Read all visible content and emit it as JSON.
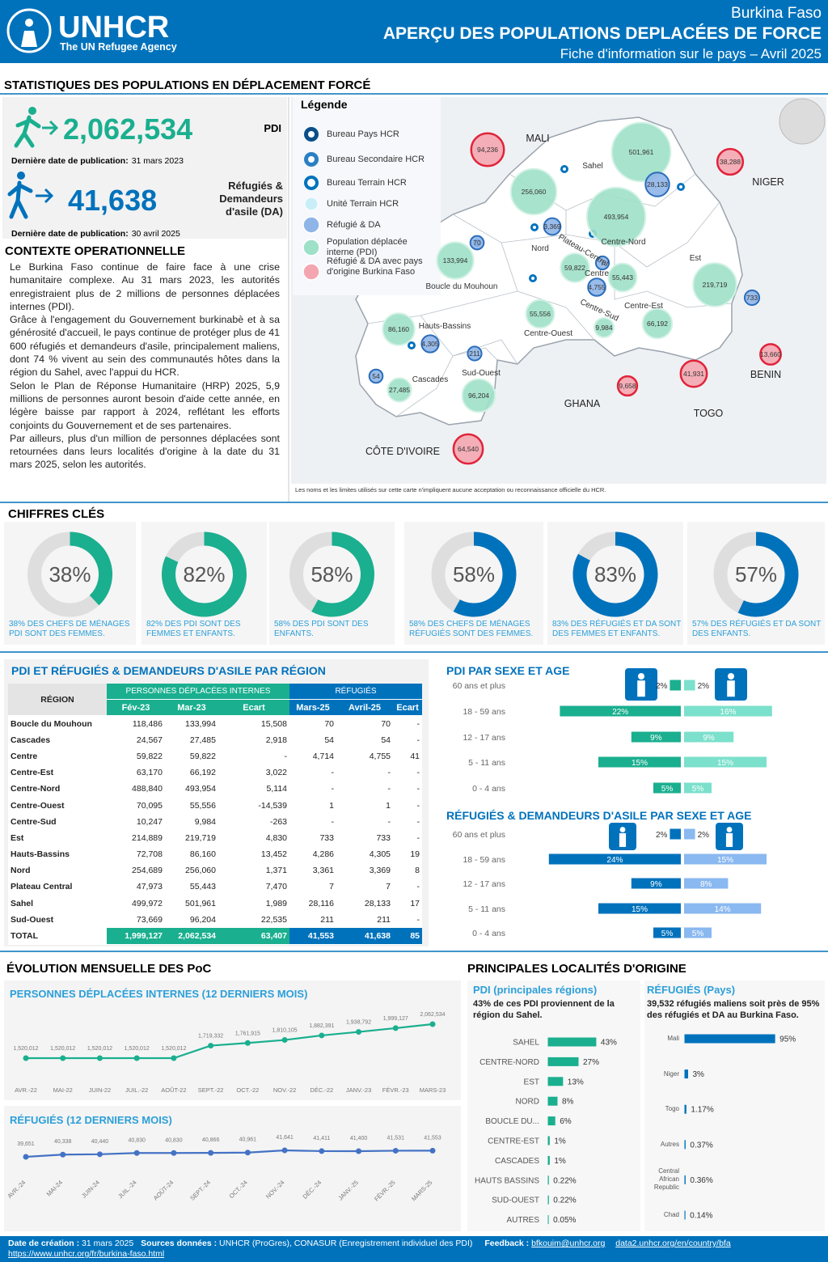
{
  "header": {
    "org": "UNHCR",
    "org_tagline": "The UN Refugee Agency",
    "country": "Burkina Faso",
    "title": "APERÇU DES POPULATIONS DEPLACÉES DE FORCE",
    "subtitle": "Fiche d'information sur le pays – Avril 2025"
  },
  "stats": {
    "title": "STATISTIQUES DES POPULATIONS EN DÉPLACEMENT FORCÉ",
    "idp": {
      "value": "2,062,534",
      "label": "PDI",
      "date_label": "Dernière date de publication:",
      "date": "31 mars 2023"
    },
    "refugees": {
      "value": "41,638",
      "label": "Réfugiés & Demandeurs d'asile (DA)",
      "date_label": "Dernière date de publication:",
      "date": "30 avril 2025"
    }
  },
  "context": {
    "title": "CONTEXTE OPERATIONNELLE",
    "paragraphs": [
      "Le Burkina Faso continue de faire face à une crise humanitaire complexe. Au 31 mars 2023, les autorités enregistraient plus de 2 millions de personnes déplacées internes (PDI).",
      "Grâce à l'engagement du Gouvernement burkinabè et à sa générosité d'accueil, le pays continue de protéger plus de 41 600 réfugiés et demandeurs d'asile, principalement maliens, dont 74 % vivent au sein des communautés hôtes dans la région du Sahel, avec l'appui du HCR.",
      "Selon le Plan de Réponse Humanitaire (HRP) 2025, 5,9 millions de personnes auront besoin d'aide cette année, en légère baisse par rapport à 2024, reflétant les efforts conjoints du Gouvernement et de ses partenaires.",
      "Par ailleurs, plus d'un million de personnes déplacées sont retournées dans leurs localités d'origine à la date du 31 mars 2025, selon les autorités."
    ]
  },
  "map": {
    "legend_title": "Légende",
    "legend": [
      "Bureau Pays HCR",
      "Bureau Secondaire HCR",
      "Bureau Terrain HCR",
      "Unité Terrain HCR",
      "Réfugié & DA",
      "Population déplacée interne (PDI)",
      "Réfugié & DA avec pays d'origine Burkina Faso"
    ],
    "countries": [
      "MALI",
      "NIGER",
      "BENIN",
      "TOGO",
      "GHANA",
      "CÔTE D'IVOIRE"
    ],
    "regions": [
      "Sahel",
      "Nord",
      "Centre-Nord",
      "Boucle du Mouhoun",
      "Est",
      "Plateau-Central",
      "Centre",
      "Centre-Sud",
      "Centre-Est",
      "Centre-Ouest",
      "Hauts-Bassins",
      "Cascades",
      "Sud-Ouest"
    ],
    "origin_bubbles": {
      "color": "#f4a6b0",
      "values": [
        94236,
        38288,
        13660,
        41931,
        9658,
        64540
      ],
      "value_labels": [
        "94,236",
        "38,288",
        "13,660",
        "41,931",
        "9,658",
        "64,540"
      ]
    },
    "idp_bubbles": {
      "color": "#9ee0c8",
      "values": [
        501961,
        256060,
        493954,
        133994,
        219719,
        59822,
        55443,
        55556,
        9984,
        66192,
        86160,
        27485,
        96204
      ],
      "value_labels": [
        "501,961",
        "256,060",
        "493,954",
        "133,994",
        "219,719",
        "59,822",
        "55,443",
        "55,556",
        "9,984",
        "66,192",
        "86,160",
        "27,485",
        "96,204"
      ]
    },
    "refugee_bubbles": {
      "color": "#8fb5e8",
      "values": [
        28133,
        3369,
        70,
        4755,
        7,
        733,
        4305,
        211,
        54
      ],
      "value_labels": [
        "28,133",
        "3,369",
        "70",
        "4,755",
        "7",
        "733",
        "4,305",
        "211",
        "54"
      ]
    },
    "disclaimer": "Les noms et les limites utilisés sur cette carte n'impliquent aucune acceptation ou reconnaissance officielle du HCR."
  },
  "key_figures": {
    "title": "CHIFFRES CLÉS",
    "items": [
      {
        "value": 38,
        "value_label": "38%",
        "caption": "38% DES CHEFS DE MÉNAGES PDI SONT DES FEMMES.",
        "color": "#1aaf8f"
      },
      {
        "value": 82,
        "value_label": "82%",
        "caption": "82% DES PDI SONT DES FEMMES ET ENFANTS.",
        "color": "#1aaf8f"
      },
      {
        "value": 58,
        "value_label": "58%",
        "caption": "58% DES PDI SONT DES ENFANTS.",
        "color": "#1aaf8f"
      },
      {
        "value": 58,
        "value_label": "58%",
        "caption": "58% DES CHEFS DE MÉNAGES RÉFUGIÉS SONT DES FEMMES.",
        "color": "#0072bc"
      },
      {
        "value": 83,
        "value_label": "83%",
        "caption": "83% DES RÉFUGIÉS ET DA SONT DES FEMMES ET ENFANTS.",
        "color": "#0072bc"
      },
      {
        "value": 57,
        "value_label": "57%",
        "caption": "57% DES RÉFUGIÉS ET DA SONT DES ENFANTS.",
        "color": "#0072bc"
      }
    ]
  },
  "region_table": {
    "title": "PDI ET RÉFUGIÉS & DEMANDEURS D'ASILE PAR RÉGION",
    "group_headers": [
      "PERSONNES DÉPLACÉES INTERNES",
      "RÉFUGIÉS"
    ],
    "columns": [
      "RÉGION",
      "Fév-23",
      "Mar-23",
      "Ecart",
      "Mars-25",
      "Avril-25",
      "Ecart"
    ],
    "rows": [
      [
        "Boucle du Mouhoun",
        "118,486",
        "133,994",
        "15,508",
        "70",
        "70",
        "-"
      ],
      [
        "Cascades",
        "24,567",
        "27,485",
        "2,918",
        "54",
        "54",
        "-"
      ],
      [
        "Centre",
        "59,822",
        "59,822",
        "-",
        "4,714",
        "4,755",
        "41"
      ],
      [
        "Centre-Est",
        "63,170",
        "66,192",
        "3,022",
        "-",
        "-",
        "-"
      ],
      [
        "Centre-Nord",
        "488,840",
        "493,954",
        "5,114",
        "-",
        "-",
        "-"
      ],
      [
        "Centre-Ouest",
        "70,095",
        "55,556",
        "-14,539",
        "1",
        "1",
        "-"
      ],
      [
        "Centre-Sud",
        "10,247",
        "9,984",
        "-263",
        "-",
        "-",
        "-"
      ],
      [
        "Est",
        "214,889",
        "219,719",
        "4,830",
        "733",
        "733",
        "-"
      ],
      [
        "Hauts-Bassins",
        "72,708",
        "86,160",
        "13,452",
        "4,286",
        "4,305",
        "19"
      ],
      [
        "Nord",
        "254,689",
        "256,060",
        "1,371",
        "3,361",
        "3,369",
        "8"
      ],
      [
        "Plateau Central",
        "47,973",
        "55,443",
        "7,470",
        "7",
        "7",
        "-"
      ],
      [
        "Sahel",
        "499,972",
        "501,961",
        "1,989",
        "28,116",
        "28,133",
        "17"
      ],
      [
        "Sud-Ouest",
        "73,669",
        "96,204",
        "22,535",
        "211",
        "211",
        "-"
      ],
      [
        "TOTAL",
        "1,999,127",
        "2,062,534",
        "63,407",
        "41,553",
        "41,638",
        "85"
      ]
    ]
  },
  "idp_pyramid": {
    "title": "PDI PAR SEXE ET AGE",
    "categories": [
      "60 ans et plus",
      "18 - 59 ans",
      "12 - 17 ans",
      "5 - 11 ans",
      "0 - 4 ans"
    ],
    "series": [
      {
        "color": "#1aaf8f",
        "values": [
          2,
          22,
          9,
          15,
          5
        ],
        "value_labels": [
          "2%",
          "22%",
          "9%",
          "15%",
          "5%"
        ]
      },
      {
        "color": "#7be0cc",
        "values": [
          2,
          16,
          9,
          15,
          5
        ],
        "value_labels": [
          "2%",
          "16%",
          "9%",
          "15%",
          "5%"
        ]
      }
    ]
  },
  "refugee_pyramid": {
    "title": "RÉFUGIÉS & DEMANDEURS D'ASILE PAR SEXE ET AGE",
    "categories": [
      "60 ans et plus",
      "18 - 59 ans",
      "12 - 17 ans",
      "5 - 11 ans",
      "0 - 4 ans"
    ],
    "series": [
      {
        "color": "#0072bc",
        "values": [
          2,
          24,
          9,
          15,
          5
        ],
        "value_labels": [
          "2%",
          "24%",
          "9%",
          "15%",
          "5%"
        ]
      },
      {
        "color": "#8ab8f0",
        "values": [
          2,
          15,
          8,
          14,
          5
        ],
        "value_labels": [
          "2%",
          "15%",
          "8%",
          "14%",
          "5%"
        ]
      }
    ]
  },
  "trend": {
    "title": "ÉVOLUTION MENSUELLE DES PoC",
    "charts": [
      {
        "type": "line",
        "title": "PERSONNES DÉPLACÉES INTERNES (12 DERNIERS MOIS)",
        "color": "#1aaf8f",
        "x": [
          "AVR.-22",
          "MAI-22",
          "JUIN-22",
          "JUIL.-22",
          "AOÛT-22",
          "SEPT.-22",
          "OCT.-22",
          "NOV.-22",
          "DÉC.-22",
          "JANV.-23",
          "FÉVR.-23",
          "MARS-23"
        ],
        "values": [
          1520012,
          1520012,
          1520012,
          1520012,
          1520012,
          1719332,
          1761915,
          1810105,
          1882391,
          1938792,
          1999127,
          2062534
        ],
        "value_labels": [
          "1,520,012",
          "1,520,012",
          "1,520,012",
          "1,520,012",
          "1,520,012",
          "1,719,332",
          "1,761,915",
          "1,810,105",
          "1,882,391",
          "1,938,792",
          "1,999,127",
          "2,062,534"
        ]
      },
      {
        "type": "line",
        "title": "RÉFUGIÉS (12 DERNIERS MOIS)",
        "color": "#4472c4",
        "x": [
          "AVR.-24",
          "MAI-24",
          "JUIN-24",
          "JUIL.-24",
          "AOÛT-24",
          "SEPT.-24",
          "OCT.-24",
          "NOV.-24",
          "DÉC.-24",
          "JANV.-25",
          "FÉVR.-25",
          "MARS-25"
        ],
        "values": [
          39651,
          40338,
          40440,
          40830,
          40830,
          40866,
          40961,
          41641,
          41411,
          41400,
          41531,
          41553
        ],
        "value_labels": [
          "39,651",
          "40,338",
          "40,440",
          "40,830",
          "40,830",
          "40,866",
          "40,961",
          "41,641",
          "41,411",
          "41,400",
          "41,531",
          "41,553"
        ]
      }
    ]
  },
  "origin": {
    "title": "PRINCIPALES LOCALITÉS D'ORIGINE",
    "charts": [
      {
        "type": "bar",
        "title": "PDI (principales régions)",
        "note": "43% de ces PDI proviennent de la région du Sahel.",
        "color": "#1aaf8f",
        "categories": [
          "SAHEL",
          "CENTRE-NORD",
          "EST",
          "NORD",
          "BOUCLE DU...",
          "CENTRE-EST",
          "CASCADES",
          "HAUTS BASSINS",
          "SUD-OUEST",
          "AUTRES"
        ],
        "values": [
          43,
          27,
          13,
          8,
          6,
          1,
          1,
          0.22,
          0.22,
          0.05
        ],
        "value_labels": [
          "43%",
          "27%",
          "13%",
          "8%",
          "6%",
          "1%",
          "1%",
          "0.22%",
          "0.22%",
          "0.05%"
        ]
      },
      {
        "type": "bar",
        "title": "RÉFUGIÉS (Pays)",
        "note": "39,532 réfugiés maliens soit près de 95% des réfugiés et DA au Burkina Faso.",
        "color": "#0072bc",
        "categories": [
          "Mali",
          "Niger",
          "Togo",
          "Autres",
          "Central African Republic",
          "Chad"
        ],
        "values": [
          95,
          3,
          1.17,
          0.37,
          0.36,
          0.14
        ],
        "value_labels": [
          "95%",
          "3%",
          "1.17%",
          "0.37%",
          "0.36%",
          "0.14%"
        ]
      }
    ]
  },
  "footer": {
    "created_label": "Date de création :",
    "created": "31 mars 2025",
    "sources_label": "Sources données :",
    "sources": "UNHCR (ProGres), CONASUR (Enregistrement individuel des PDI)",
    "feedback_label": "Feedback :",
    "feedback_email": "bfkouim@unhcr.org",
    "portal": "data2.unhcr.org/en/country/bfa",
    "website": "https://www.unhcr.org/fr/burkina-faso.html"
  }
}
